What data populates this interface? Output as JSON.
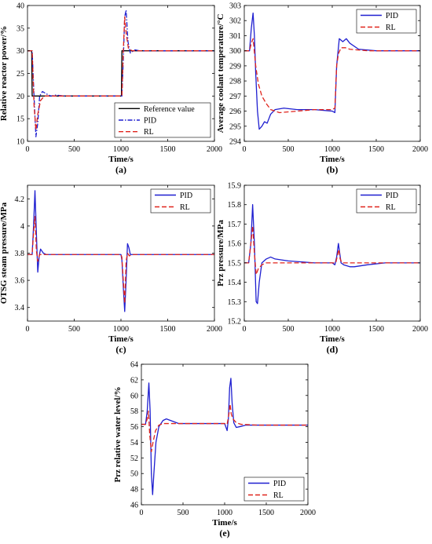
{
  "chart_data": [
    {
      "id": "a",
      "type": "line",
      "panel_label": "(a)",
      "xlabel": "Time/s",
      "ylabel": "Relative reactor power/%",
      "xlim": [
        0,
        2000
      ],
      "ylim": [
        10,
        40
      ],
      "xticks": [
        0,
        500,
        1000,
        1500,
        2000
      ],
      "yticks": [
        10,
        15,
        20,
        25,
        30,
        35,
        40
      ],
      "legend_position": "bottom-right",
      "series": [
        {
          "name": "Reference value",
          "color": "#000000",
          "dash": "solid",
          "x": [
            0,
            45,
            50,
            500,
            1000,
            1005,
            1010,
            2000
          ],
          "y": [
            30,
            30,
            20,
            20,
            20,
            20,
            30,
            30
          ]
        },
        {
          "name": "PID",
          "color": "#1f1fd0",
          "dash": "dashdot",
          "x": [
            0,
            50,
            70,
            90,
            110,
            130,
            160,
            200,
            250,
            300,
            400,
            600,
            1000,
            1010,
            1025,
            1040,
            1055,
            1075,
            1100,
            1150,
            1200,
            1400,
            2000
          ],
          "y": [
            30,
            30,
            20,
            11,
            14,
            20,
            21,
            20.5,
            20,
            20.2,
            20,
            20,
            20,
            20,
            28,
            37.5,
            39,
            32,
            29.5,
            30.2,
            30,
            30,
            30
          ]
        },
        {
          "name": "RL",
          "color": "#e0241c",
          "dash": "dashed",
          "x": [
            0,
            50,
            70,
            90,
            110,
            140,
            180,
            250,
            400,
            1000,
            1010,
            1025,
            1040,
            1055,
            1080,
            1120,
            1200,
            2000
          ],
          "y": [
            30,
            30,
            18,
            12.5,
            16,
            19,
            20,
            20,
            20,
            20,
            20,
            30,
            37.5,
            34,
            30.5,
            30,
            30,
            30
          ]
        }
      ]
    },
    {
      "id": "b",
      "type": "line",
      "panel_label": "(b)",
      "xlabel": "Time/s",
      "ylabel": "Average coolant temperature/°C",
      "xlim": [
        0,
        2000
      ],
      "ylim": [
        294,
        303
      ],
      "xticks": [
        0,
        500,
        1000,
        1500,
        2000
      ],
      "yticks": [
        294,
        295,
        296,
        297,
        298,
        299,
        300,
        301,
        302,
        303
      ],
      "legend_position": "top-right",
      "series": [
        {
          "name": "PID",
          "color": "#1f1fd0",
          "dash": "solid",
          "x": [
            0,
            60,
            80,
            100,
            115,
            130,
            150,
            170,
            200,
            230,
            260,
            300,
            350,
            450,
            600,
            800,
            1000,
            1030,
            1050,
            1080,
            1120,
            1160,
            1200,
            1300,
            1500,
            2000
          ],
          "y": [
            300,
            300,
            301.5,
            302.5,
            301,
            298.5,
            296,
            294.8,
            295,
            295.3,
            295.2,
            295.8,
            296.1,
            296.2,
            296.1,
            296.1,
            296.0,
            295.9,
            299,
            300.8,
            300.6,
            300.8,
            300.5,
            300.1,
            300.0,
            300.0
          ]
        },
        {
          "name": "RL",
          "color": "#e0241c",
          "dash": "dashed",
          "x": [
            0,
            60,
            80,
            100,
            130,
            160,
            200,
            250,
            300,
            400,
            600,
            800,
            1000,
            1030,
            1050,
            1070,
            1100,
            1150,
            1200,
            1400,
            2000
          ],
          "y": [
            300,
            300,
            300.5,
            300.8,
            299,
            297.8,
            297,
            296.5,
            296.1,
            295.9,
            296.0,
            296.1,
            296.1,
            296.2,
            299,
            299.8,
            300.2,
            300.2,
            300.1,
            300.0,
            300.0
          ]
        }
      ]
    },
    {
      "id": "c",
      "type": "line",
      "panel_label": "(c)",
      "xlabel": "Time/s",
      "ylabel": "OTSG steam pressure/MPa",
      "xlim": [
        0,
        2000
      ],
      "ylim": [
        3.3,
        4.3
      ],
      "xticks": [
        0,
        500,
        1000,
        1500,
        2000
      ],
      "yticks": [
        3.4,
        3.6,
        3.8,
        4.0,
        4.2
      ],
      "ytick_labels": [
        "3.4",
        "3.6",
        "3.8",
        "4",
        "4.2"
      ],
      "legend_position": "top-right",
      "series": [
        {
          "name": "PID",
          "color": "#1f1fd0",
          "dash": "solid",
          "x": [
            0,
            50,
            65,
            80,
            95,
            110,
            125,
            140,
            170,
            200,
            1000,
            1010,
            1025,
            1040,
            1055,
            1070,
            1085,
            1100,
            1150,
            2000
          ],
          "y": [
            3.79,
            3.79,
            4.0,
            4.26,
            3.95,
            3.66,
            3.78,
            3.83,
            3.8,
            3.79,
            3.79,
            3.75,
            3.55,
            3.37,
            3.6,
            3.87,
            3.84,
            3.79,
            3.79,
            3.79
          ]
        },
        {
          "name": "RL",
          "color": "#e0241c",
          "dash": "dashed",
          "x": [
            0,
            50,
            65,
            80,
            95,
            110,
            130,
            160,
            1000,
            1010,
            1025,
            1040,
            1055,
            1070,
            1090,
            1120,
            2000
          ],
          "y": [
            3.79,
            3.79,
            3.95,
            4.07,
            3.82,
            3.74,
            3.79,
            3.79,
            3.79,
            3.77,
            3.6,
            3.43,
            3.74,
            3.8,
            3.78,
            3.79,
            3.79
          ]
        }
      ]
    },
    {
      "id": "d",
      "type": "line",
      "panel_label": "(d)",
      "xlabel": "Time/s",
      "ylabel": "Prz pressure/MPa",
      "xlim": [
        0,
        2000
      ],
      "ylim": [
        15.2,
        15.9
      ],
      "xticks": [
        0,
        500,
        1000,
        1500,
        2000
      ],
      "yticks": [
        15.2,
        15.3,
        15.4,
        15.5,
        15.6,
        15.7,
        15.8,
        15.9
      ],
      "legend_position": "top-right",
      "series": [
        {
          "name": "PID",
          "color": "#1f1fd0",
          "dash": "solid",
          "x": [
            0,
            50,
            75,
            95,
            115,
            135,
            150,
            170,
            200,
            250,
            300,
            350,
            500,
            800,
            1000,
            1030,
            1050,
            1070,
            1085,
            1100,
            1130,
            1200,
            1250,
            1400,
            1600,
            2000
          ],
          "y": [
            15.5,
            15.5,
            15.6,
            15.8,
            15.6,
            15.3,
            15.29,
            15.4,
            15.5,
            15.52,
            15.53,
            15.52,
            15.51,
            15.5,
            15.5,
            15.49,
            15.53,
            15.6,
            15.55,
            15.5,
            15.49,
            15.48,
            15.48,
            15.49,
            15.5,
            15.5
          ]
        },
        {
          "name": "RL",
          "color": "#e0241c",
          "dash": "dashed",
          "x": [
            0,
            50,
            75,
            95,
            115,
            135,
            160,
            200,
            250,
            400,
            1000,
            1040,
            1060,
            1075,
            1090,
            1110,
            1200,
            1400,
            2000
          ],
          "y": [
            15.5,
            15.5,
            15.6,
            15.69,
            15.55,
            15.44,
            15.47,
            15.49,
            15.5,
            15.5,
            15.5,
            15.5,
            15.54,
            15.57,
            15.52,
            15.5,
            15.5,
            15.5,
            15.5
          ]
        }
      ]
    },
    {
      "id": "e",
      "type": "line",
      "panel_label": "(e)",
      "xlabel": "Time/s",
      "ylabel": "Prz relative water level/%",
      "xlim": [
        0,
        2000
      ],
      "ylim": [
        46,
        64
      ],
      "xticks": [
        0,
        500,
        1000,
        1500,
        2000
      ],
      "yticks": [
        46,
        48,
        50,
        52,
        54,
        56,
        58,
        60,
        62,
        64
      ],
      "legend_position": "bottom-right",
      "series": [
        {
          "name": "PID",
          "color": "#1f1fd0",
          "dash": "solid",
          "x": [
            0,
            50,
            70,
            90,
            105,
            120,
            135,
            150,
            175,
            210,
            260,
            300,
            350,
            450,
            600,
            1000,
            1030,
            1045,
            1060,
            1075,
            1090,
            1110,
            1140,
            1180,
            1250,
            1400,
            2000
          ],
          "y": [
            56.3,
            56.3,
            58,
            61.6,
            58,
            50,
            47.3,
            50,
            54,
            56,
            56.8,
            57,
            56.8,
            56.4,
            56.4,
            56.4,
            55.5,
            57,
            61,
            62.2,
            59,
            56.5,
            55.9,
            56.0,
            56.2,
            56.2,
            56.2
          ]
        },
        {
          "name": "RL",
          "color": "#e0241c",
          "dash": "dashed",
          "x": [
            0,
            50,
            70,
            85,
            100,
            120,
            140,
            170,
            210,
            260,
            350,
            600,
            1000,
            1030,
            1050,
            1065,
            1080,
            1100,
            1140,
            1200,
            1400,
            2000
          ],
          "y": [
            56.3,
            56.3,
            57,
            58,
            55,
            52.8,
            54,
            55.5,
            56.2,
            56.4,
            56.4,
            56.4,
            56.4,
            56.3,
            57.5,
            58.9,
            57.6,
            57,
            56.5,
            56.3,
            56.2,
            56.2
          ]
        }
      ]
    }
  ]
}
